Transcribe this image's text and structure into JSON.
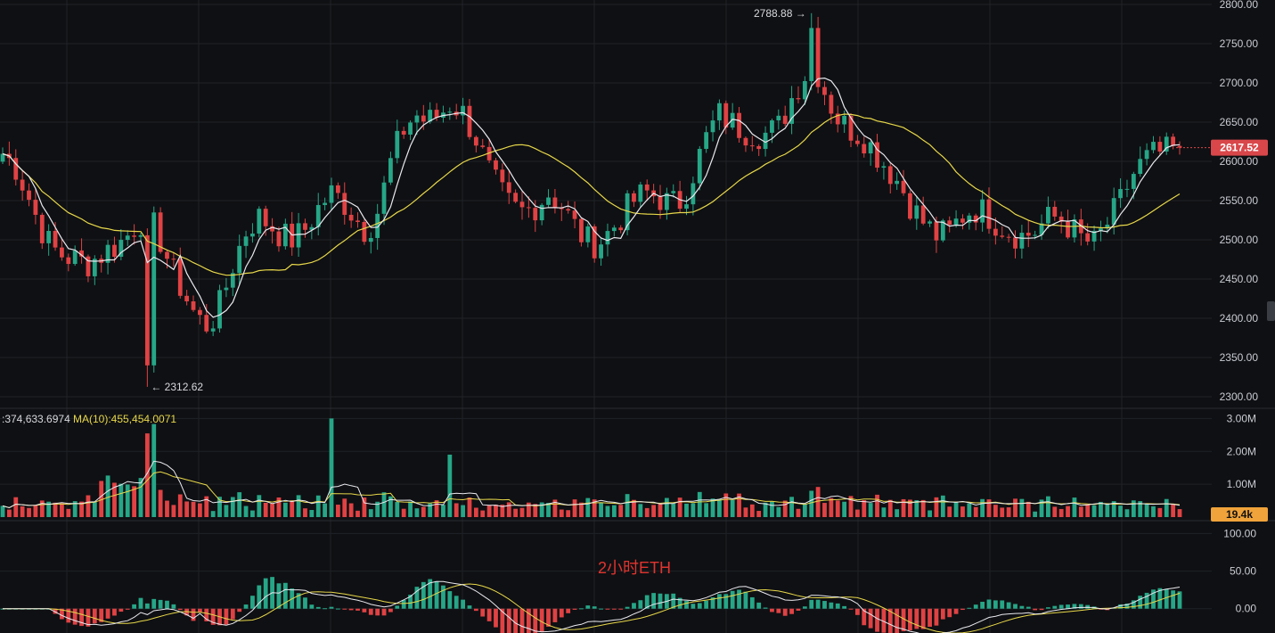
{
  "chart_data": [
    {
      "type": "candlestick",
      "title": "2小时ETH",
      "ylim": [
        2300,
        2800
      ],
      "y_ticks": [
        "2300.00",
        "2350.00",
        "2400.00",
        "2450.00",
        "2500.00",
        "2550.00",
        "2600.00",
        "2650.00",
        "2700.00",
        "2750.00",
        "2800.00"
      ],
      "current_price": "2617.52",
      "high_annotation": "2788.88",
      "low_annotation": "← 2312.62",
      "grid": true,
      "overlays": [
        {
          "name": "MA-fast",
          "color": "#e9e9ef"
        },
        {
          "name": "MA-slow",
          "color": "#e7d74a"
        }
      ],
      "close_path": [
        2610,
        2595,
        2560,
        2520,
        2490,
        2480,
        2475,
        2470,
        2480,
        2490,
        2500,
        2520,
        2530,
        2500,
        2460,
        2430,
        2400,
        2390,
        2420,
        2470,
        2510,
        2530,
        2520,
        2505,
        2500,
        2515,
        2540,
        2560,
        2550,
        2530,
        2510,
        2540,
        2600,
        2640,
        2660,
        2650,
        2660,
        2675,
        2660,
        2630,
        2590,
        2560,
        2540,
        2535,
        2545,
        2560,
        2545,
        2520,
        2500,
        2495,
        2510,
        2530,
        2550,
        2560,
        2555,
        2545,
        2550,
        2590,
        2630,
        2660,
        2650,
        2640,
        2635,
        2635,
        2645,
        2680,
        2710,
        2720,
        2680,
        2650,
        2640,
        2630,
        2610,
        2590,
        2570,
        2540,
        2520,
        2505,
        2510,
        2530,
        2540,
        2535,
        2520,
        2510,
        2505,
        2510,
        2525,
        2530,
        2515,
        2500,
        2495,
        2520,
        2545,
        2580,
        2600,
        2610,
        2612,
        2617
      ]
    },
    {
      "type": "bar",
      "series": [
        {
          "name": "MA(10):455,454.0071"
        }
      ],
      "legend_text": "374,633.6974",
      "ma_label": "MA(10):455,454.0071",
      "y_ticks": [
        "1.00M",
        "2.00M",
        "3.00M"
      ],
      "current_value": "19.4k",
      "ylim": [
        0,
        3200000
      ],
      "spike_value": 3000000
    },
    {
      "type": "bar",
      "y_ticks": [
        "0.00",
        "50.00",
        "100.00"
      ],
      "ylim": [
        -30,
        110
      ]
    }
  ],
  "colors": {
    "background": "#0f1013",
    "grid": "#1f2227",
    "up": "#26a687",
    "down": "#e04244",
    "ma_fast": "#e9e9ef",
    "ma_slow": "#e7d74a",
    "price_tag": "#d9474a",
    "volume_tag": "#f0a33a",
    "scroll_handle": "#3a3d44"
  },
  "ui": {
    "watermark": "2小时ETH"
  }
}
